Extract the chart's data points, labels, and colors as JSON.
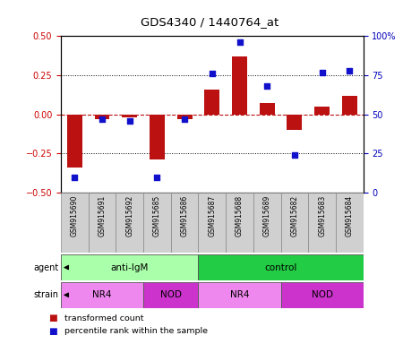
{
  "title": "GDS4340 / 1440764_at",
  "samples": [
    "GSM915690",
    "GSM915691",
    "GSM915692",
    "GSM915685",
    "GSM915686",
    "GSM915687",
    "GSM915688",
    "GSM915689",
    "GSM915682",
    "GSM915683",
    "GSM915684"
  ],
  "transformed_count": [
    -0.34,
    -0.03,
    -0.02,
    -0.29,
    -0.03,
    0.16,
    0.37,
    0.07,
    -0.1,
    0.05,
    0.12
  ],
  "percentile_rank": [
    10,
    47,
    46,
    10,
    47,
    76,
    96,
    68,
    24,
    77,
    78
  ],
  "ylim_left": [
    -0.5,
    0.5
  ],
  "ylim_right": [
    0,
    100
  ],
  "yticks_left": [
    -0.5,
    -0.25,
    0,
    0.25,
    0.5
  ],
  "yticks_right": [
    0,
    25,
    50,
    75,
    100
  ],
  "ytick_labels_right": [
    "0",
    "25",
    "50",
    "75",
    "100%"
  ],
  "hlines_dotted": [
    -0.25,
    0.25
  ],
  "hline_dashed": 0,
  "bar_color": "#BB1111",
  "dot_color": "#1111CC",
  "agent_groups": [
    {
      "label": "anti-IgM",
      "start": 0,
      "end": 5,
      "color": "#AAFFAA"
    },
    {
      "label": "control",
      "start": 5,
      "end": 11,
      "color": "#22CC44"
    }
  ],
  "strain_groups": [
    {
      "label": "NR4",
      "start": 0,
      "end": 3,
      "color": "#EE88EE"
    },
    {
      "label": "NOD",
      "start": 3,
      "end": 5,
      "color": "#CC33CC"
    },
    {
      "label": "NR4",
      "start": 5,
      "end": 8,
      "color": "#EE88EE"
    },
    {
      "label": "NOD",
      "start": 8,
      "end": 11,
      "color": "#CC33CC"
    }
  ],
  "left_tick_color": "#CC0000",
  "right_tick_color": "#0000BB",
  "bg_color": "#FFFFFF",
  "sample_box_color": "#D0D0D0",
  "legend_items": [
    {
      "color": "#BB1111",
      "label": "transformed count"
    },
    {
      "color": "#1111CC",
      "label": "percentile rank within the sample"
    }
  ]
}
